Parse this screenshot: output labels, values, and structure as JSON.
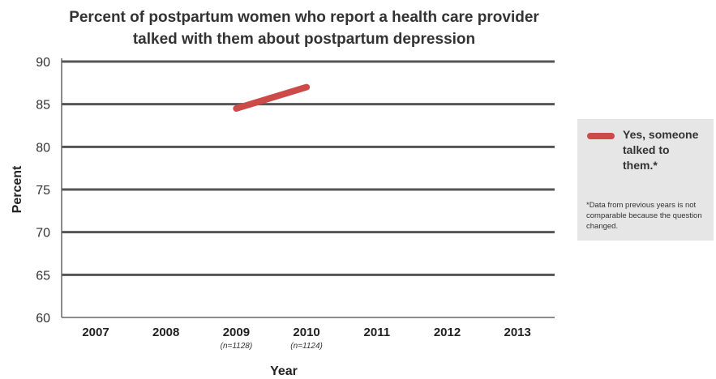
{
  "chart_data": {
    "type": "line",
    "title": "Percent of postpartum women who report a health care provider talked with them about postpartum depression",
    "xlabel": "Year",
    "ylabel": "Percent",
    "categories": [
      "2007",
      "2008",
      "2009",
      "2010",
      "2011",
      "2012",
      "2013"
    ],
    "category_notes": [
      "",
      "",
      "(n=1128)",
      "(n=1124)",
      "",
      "",
      ""
    ],
    "yticks": [
      60,
      65,
      70,
      75,
      80,
      85,
      90
    ],
    "ylim": [
      60,
      90
    ],
    "grid": true,
    "legend_position": "right",
    "legend_note": "*Data from previous years is not comparable because the question changed.",
    "series": [
      {
        "name": "Yes, someone talked to them.*",
        "color": "#cc4a48",
        "values": [
          null,
          null,
          84.5,
          87,
          null,
          null,
          null
        ]
      }
    ],
    "colors": {
      "gridline": "#555555",
      "axis": "#666666",
      "legend_bg": "#e6e6e6"
    }
  }
}
